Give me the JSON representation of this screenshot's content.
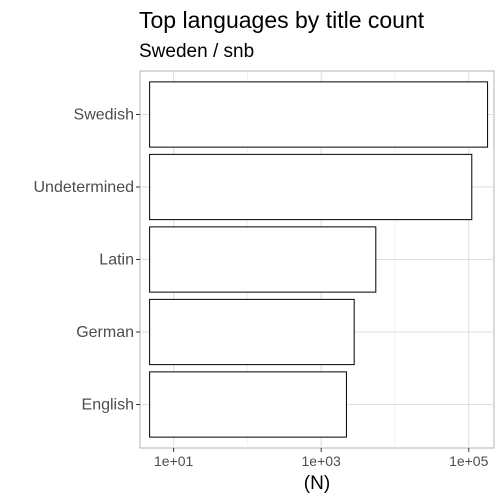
{
  "chart_data": {
    "type": "bar",
    "orientation": "horizontal",
    "title": "Top languages by title count",
    "subtitle": "Sweden / snb",
    "xlabel": "(N)",
    "ylabel": "",
    "x_scale": "log10",
    "xlim": [
      3.5,
      220000
    ],
    "x_ticks": [
      10,
      1000,
      100000
    ],
    "x_tick_labels": [
      "1e+01",
      "1e+03",
      "1e+05"
    ],
    "categories": [
      "Swedish",
      "Undetermined",
      "Latin",
      "German",
      "English"
    ],
    "values": [
      180000,
      110000,
      5500,
      2800,
      2200
    ],
    "bar_fill": "#ffffff",
    "bar_stroke": "#000000",
    "grid": true,
    "legend": "none"
  }
}
